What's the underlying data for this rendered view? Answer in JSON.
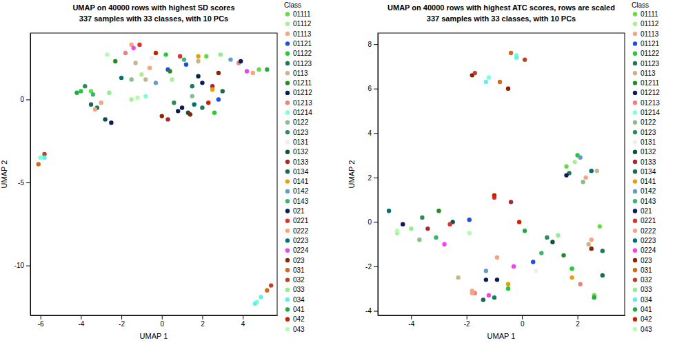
{
  "chart_data": [
    {
      "type": "scatter",
      "title": "UMAP on 40000 rows with highest SD scores",
      "subtitle": "337 samples with 33 classes, with 10 PCs",
      "xlabel": "UMAP 1",
      "ylabel": "UMAP 2",
      "legend_title": "Class",
      "legend": "right",
      "marker": "circle",
      "xlim": [
        -6.5,
        5.7
      ],
      "xticks": [
        -6,
        -4,
        -2,
        0,
        2,
        4
      ],
      "ylim": [
        -13,
        4
      ],
      "yticks": [
        -10,
        -5,
        0
      ],
      "series": [
        {
          "name": "01111",
          "color": "#66dd44",
          "x": [
            -3.5,
            2.2,
            4.8
          ],
          "y": [
            0.5,
            2.6,
            1.8
          ]
        },
        {
          "name": "01112",
          "color": "#aaee99",
          "x": [
            -1,
            -1.5,
            0.5
          ],
          "y": [
            1.5,
            0,
            1.2
          ]
        },
        {
          "name": "01113",
          "color": "#f4a582",
          "x": [
            -3,
            -1.5,
            4.5
          ],
          "y": [
            -0.2,
            3.3,
            1.6
          ]
        },
        {
          "name": "01121",
          "color": "#1f4fe0",
          "x": [
            0.3,
            1.2,
            2.8
          ],
          "y": [
            1.8,
            2.1,
            0
          ]
        },
        {
          "name": "01122",
          "color": "#22cc33",
          "x": [
            -4,
            0.2,
            2.6
          ],
          "y": [
            0.5,
            2.7,
            -0.8
          ]
        },
        {
          "name": "01123",
          "color": "#1a7a5a",
          "x": [
            -3.2,
            1.5,
            2
          ],
          "y": [
            -0.5,
            0.8,
            -0.5
          ]
        },
        {
          "name": "0113",
          "color": "#c8b48c",
          "x": [
            -1.3,
            -0.8,
            1.8
          ],
          "y": [
            2.2,
            1.2,
            2.3
          ]
        },
        {
          "name": "01211",
          "color": "#228b22",
          "x": [
            -2.3,
            0.4
          ],
          "y": [
            2.3,
            1.7
          ]
        },
        {
          "name": "01212",
          "color": "#0a1a5a",
          "x": [
            -2.5,
            1,
            2
          ],
          "y": [
            -1.4,
            -0.5,
            1
          ]
        },
        {
          "name": "01213",
          "color": "#f08080",
          "x": [
            -1.8,
            3.8
          ],
          "y": [
            2.8,
            2.2
          ]
        },
        {
          "name": "01214",
          "color": "#7fffd4",
          "x": [
            -0.8,
            4.7,
            -6
          ],
          "y": [
            0.2,
            -12.2,
            -3.5
          ]
        },
        {
          "name": "0122",
          "color": "#8fbc8f",
          "x": [
            -1.5,
            1.5
          ],
          "y": [
            1.2,
            0.2
          ]
        },
        {
          "name": "0123",
          "color": "#2e8b57",
          "x": [
            -3.8,
            0.6
          ],
          "y": [
            0.8,
            -0.2
          ]
        },
        {
          "name": "0131",
          "color": "#eeeeee",
          "x": [
            -0.5
          ],
          "y": [
            2.5
          ]
        },
        {
          "name": "0132",
          "color": "#0b5345",
          "x": [
            -2.8,
            1.3
          ],
          "y": [
            -1.2,
            -0.8
          ]
        },
        {
          "name": "0133",
          "color": "#a52a2a",
          "x": [
            0.3,
            2.5
          ],
          "y": [
            -1.2,
            0.8
          ]
        },
        {
          "name": "0134",
          "color": "#1a6b4a",
          "x": [
            -3.5,
            3
          ],
          "y": [
            -0.3,
            0.5
          ]
        },
        {
          "name": "0141",
          "color": "#e8a000",
          "x": [
            1.8,
            2.5
          ],
          "y": [
            2.6,
            0.6
          ]
        },
        {
          "name": "0142",
          "color": "#6699cc",
          "x": [
            3.4,
            -0.3
          ],
          "y": [
            2.4,
            1
          ]
        },
        {
          "name": "0143",
          "color": "#3cb371",
          "x": [
            -3.4,
            1.1
          ],
          "y": [
            0.3,
            2.4
          ]
        },
        {
          "name": "021",
          "color": "#0a1f4f",
          "x": [
            0.8,
            1.8,
            3.9
          ],
          "y": [
            -0.7,
            1.4,
            2.3
          ]
        },
        {
          "name": "0221",
          "color": "#e03030",
          "x": [
            -1.1,
            0.9
          ],
          "y": [
            3.3,
            2.6
          ]
        },
        {
          "name": "0222",
          "color": "#f4a582",
          "x": [
            -3.3,
            -0.6
          ],
          "y": [
            -0.6,
            1.9
          ]
        },
        {
          "name": "0223",
          "color": "#007070",
          "x": [
            1.6,
            -2
          ],
          "y": [
            -0.3,
            1.3
          ]
        },
        {
          "name": "0224",
          "color": "#ee44ee",
          "x": [
            -1.4,
            4.2
          ],
          "y": [
            3.1,
            1.7
          ]
        },
        {
          "name": "023",
          "color": "#8b2500",
          "x": [
            0,
            1.4,
            2.8
          ],
          "y": [
            -1,
            -0.9,
            1.6
          ]
        },
        {
          "name": "031",
          "color": "#d2691e",
          "x": [
            -6.1,
            5.2
          ],
          "y": [
            -3.9,
            -11.5
          ]
        },
        {
          "name": "032",
          "color": "#b8432a",
          "x": [
            -5.8,
            5.4
          ],
          "y": [
            -3.3,
            -11.2
          ]
        },
        {
          "name": "033",
          "color": "#90ee90",
          "x": [
            -2.6,
            2.9
          ],
          "y": [
            0.4,
            2.7
          ]
        },
        {
          "name": "034",
          "color": "#66eeee",
          "x": [
            -5.8,
            4.6,
            4.9
          ],
          "y": [
            -3.5,
            -12.3,
            -11.9
          ]
        },
        {
          "name": "041",
          "color": "#22aa44",
          "x": [
            -4.2,
            5.2
          ],
          "y": [
            0.4,
            1.8
          ]
        },
        {
          "name": "042",
          "color": "#cc2200",
          "x": [
            -0.3,
            2.3
          ],
          "y": [
            2.8,
            -0.2
          ]
        },
        {
          "name": "043",
          "color": "#b0ffb0",
          "x": [
            -2.7,
            -1.2
          ],
          "y": [
            2.7,
            0.1
          ]
        }
      ]
    },
    {
      "type": "scatter",
      "title": "UMAP on 40000 rows with highest ATC scores, rows are scaled",
      "subtitle": "337 samples with 33 classes, with 10 PCs",
      "xlabel": "UMAP 1",
      "ylabel": "UMAP 2",
      "legend_title": "Class",
      "legend": "right",
      "marker": "circle",
      "xlim": [
        -5.2,
        3.7
      ],
      "xticks": [
        -4,
        -2,
        0,
        2
      ],
      "ylim": [
        -4.2,
        8.5
      ],
      "yticks": [
        -4,
        -2,
        0,
        2,
        4,
        6,
        8
      ],
      "series": [
        {
          "name": "01111",
          "color": "#66dd44",
          "x": [
            1.6,
            2.6,
            2.8
          ],
          "y": [
            2.5,
            -3.3,
            -0.2
          ]
        },
        {
          "name": "01112",
          "color": "#aaee99",
          "x": [
            1.9,
            -4.5
          ],
          "y": [
            2.7,
            -0.5
          ]
        },
        {
          "name": "01113",
          "color": "#f4a582",
          "x": [
            2.3,
            2.5,
            -1.8
          ],
          "y": [
            2,
            -0.8,
            -3.1
          ]
        },
        {
          "name": "01121",
          "color": "#1f4fe0",
          "x": [
            -1.9,
            0.4
          ],
          "y": [
            0.1,
            -1.8
          ]
        },
        {
          "name": "01122",
          "color": "#22cc33",
          "x": [
            2,
            -0.5,
            1.8
          ],
          "y": [
            3,
            -3,
            -2.1
          ]
        },
        {
          "name": "01123",
          "color": "#1a7a5a",
          "x": [
            1.7,
            -1,
            2.9
          ],
          "y": [
            2.2,
            -3.4,
            -1.3
          ]
        },
        {
          "name": "0113",
          "color": "#c8b48c",
          "x": [
            2.7,
            -2.3,
            2.4
          ],
          "y": [
            2.3,
            -2.5,
            -1
          ]
        },
        {
          "name": "01211",
          "color": "#228b22",
          "x": [
            -3,
            1.5
          ],
          "y": [
            0.5,
            -1.5
          ]
        },
        {
          "name": "01212",
          "color": "#0a1a5a",
          "x": [
            -4.3,
            -1.3
          ],
          "y": [
            -0.1,
            -2.6
          ]
        },
        {
          "name": "01213",
          "color": "#f08080",
          "x": [
            -1.7,
            2.1
          ],
          "y": [
            -3.2,
            -2.8
          ]
        },
        {
          "name": "01214",
          "color": "#7fffd4",
          "x": [
            -1.2,
            -0.2
          ],
          "y": [
            6.5,
            7.5
          ]
        },
        {
          "name": "0122",
          "color": "#8fbc8f",
          "x": [
            2.2,
            -3.7
          ],
          "y": [
            1.8,
            -0.8
          ]
        },
        {
          "name": "0123",
          "color": "#2e8b57",
          "x": [
            -3.6,
            0.9
          ],
          "y": [
            0.2,
            -0.7
          ]
        },
        {
          "name": "0131",
          "color": "#eeeeee",
          "x": [
            0.5
          ],
          "y": [
            -2.2
          ]
        },
        {
          "name": "0132",
          "color": "#0b5345",
          "x": [
            -2.5,
            1.1
          ],
          "y": [
            0,
            -0.9
          ]
        },
        {
          "name": "0133",
          "color": "#a52a2a",
          "x": [
            -0.4,
            -3.4
          ],
          "y": [
            0.9,
            -0.3
          ]
        },
        {
          "name": "0134",
          "color": "#1a6b4a",
          "x": [
            -1.4,
            2.9
          ],
          "y": [
            -3.5,
            -2.4
          ]
        },
        {
          "name": "0141",
          "color": "#e8a000",
          "x": [
            -0.5,
            1.8
          ],
          "y": [
            -2.8,
            -2.5
          ]
        },
        {
          "name": "0142",
          "color": "#6699cc",
          "x": [
            -1.3,
            2.1
          ],
          "y": [
            -2.2,
            2.9
          ]
        },
        {
          "name": "0143",
          "color": "#3cb371",
          "x": [
            -3.1,
            0.7
          ],
          "y": [
            -0.7,
            -1.4
          ]
        },
        {
          "name": "021",
          "color": "#0a1f4f",
          "x": [
            -0.9,
            1.6
          ],
          "y": [
            -2.6,
            2.1
          ]
        },
        {
          "name": "0221",
          "color": "#e03030",
          "x": [
            -1,
            -2.6
          ],
          "y": [
            1.1,
            -0.1
          ]
        },
        {
          "name": "0222",
          "color": "#f4a582",
          "x": [
            -0.9,
            -1.8
          ],
          "y": [
            -1.6,
            -3.2
          ]
        },
        {
          "name": "0223",
          "color": "#007070",
          "x": [
            2.5,
            -4.8
          ],
          "y": [
            2.3,
            0.5
          ]
        },
        {
          "name": "0224",
          "color": "#ee44ee",
          "x": [
            -1.2,
            -2.8,
            -0.3
          ],
          "y": [
            -3.3,
            -1,
            -2
          ]
        },
        {
          "name": "023",
          "color": "#8b2500",
          "x": [
            -1.8,
            -0.5,
            2.5
          ],
          "y": [
            6.6,
            6,
            -1.2
          ]
        },
        {
          "name": "031",
          "color": "#d2691e",
          "x": [
            -0.8,
            -0.4
          ],
          "y": [
            6.3,
            7.6
          ]
        },
        {
          "name": "032",
          "color": "#b8432a",
          "x": [
            -1.7,
            0.1
          ],
          "y": [
            6.7,
            7.3
          ]
        },
        {
          "name": "033",
          "color": "#90ee90",
          "x": [
            -4,
            1.3
          ],
          "y": [
            -0.3,
            -0.6
          ]
        },
        {
          "name": "034",
          "color": "#66eeee",
          "x": [
            -1.3,
            -0.2
          ],
          "y": [
            6.3,
            7.4
          ]
        },
        {
          "name": "041",
          "color": "#22aa44",
          "x": [
            0.1,
            2.6
          ],
          "y": [
            -0.4,
            -3.4
          ]
        },
        {
          "name": "042",
          "color": "#cc2200",
          "x": [
            -1,
            -0.1
          ],
          "y": [
            1.2,
            0
          ]
        },
        {
          "name": "043",
          "color": "#b0ffb0",
          "x": [
            -4.5,
            -1.9
          ],
          "y": [
            -0.4,
            -0.5
          ]
        }
      ]
    }
  ]
}
